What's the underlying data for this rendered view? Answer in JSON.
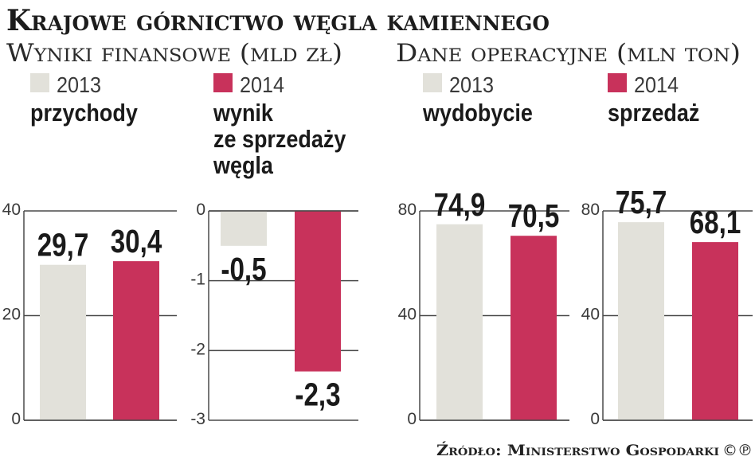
{
  "title": "Krajowe górnictwo węgla kamiennego",
  "groups": [
    {
      "subtitle": "Wyniki finansowe (mld zł)"
    },
    {
      "subtitle": "Dane operacyjne (mln ton)"
    }
  ],
  "legend": [
    {
      "label": "2013",
      "color": "#e2e1da"
    },
    {
      "label": "2014",
      "color": "#c8325b"
    }
  ],
  "colors": {
    "gridline": "#4a4a4a"
  },
  "chart_data": [
    {
      "type": "bar",
      "title": [
        "przychody"
      ],
      "categories": [
        "2013",
        "2014"
      ],
      "values": [
        29.7,
        30.4
      ],
      "data_labels": [
        "29,7",
        "30,4"
      ],
      "ylim": [
        0,
        40
      ],
      "yticks": [
        0,
        20,
        40
      ],
      "grid": true
    },
    {
      "type": "bar",
      "title": [
        "wynik",
        "ze sprzedaży",
        "węgla"
      ],
      "categories": [
        "2013",
        "2014"
      ],
      "values": [
        -0.5,
        -2.3
      ],
      "data_labels": [
        "-0,5",
        "-2,3"
      ],
      "ylim": [
        -3,
        0
      ],
      "yticks": [
        0,
        -1,
        -2,
        -3
      ],
      "grid": true
    },
    {
      "type": "bar",
      "title": [
        "wydobycie"
      ],
      "categories": [
        "2013",
        "2014"
      ],
      "values": [
        74.9,
        70.5
      ],
      "data_labels": [
        "74,9",
        "70,5"
      ],
      "ylim": [
        0,
        80
      ],
      "yticks": [
        0,
        40,
        80
      ],
      "grid": true
    },
    {
      "type": "bar",
      "title": [
        "sprzedaż"
      ],
      "categories": [
        "2013",
        "2014"
      ],
      "values": [
        75.7,
        68.1
      ],
      "data_labels": [
        "75,7",
        "68,1"
      ],
      "ylim": [
        0,
        80
      ],
      "yticks": [
        0,
        40,
        80
      ],
      "grid": true
    }
  ],
  "source": {
    "text": "Źródło: Ministerstwo Gospodarki",
    "credit": "©℗"
  }
}
